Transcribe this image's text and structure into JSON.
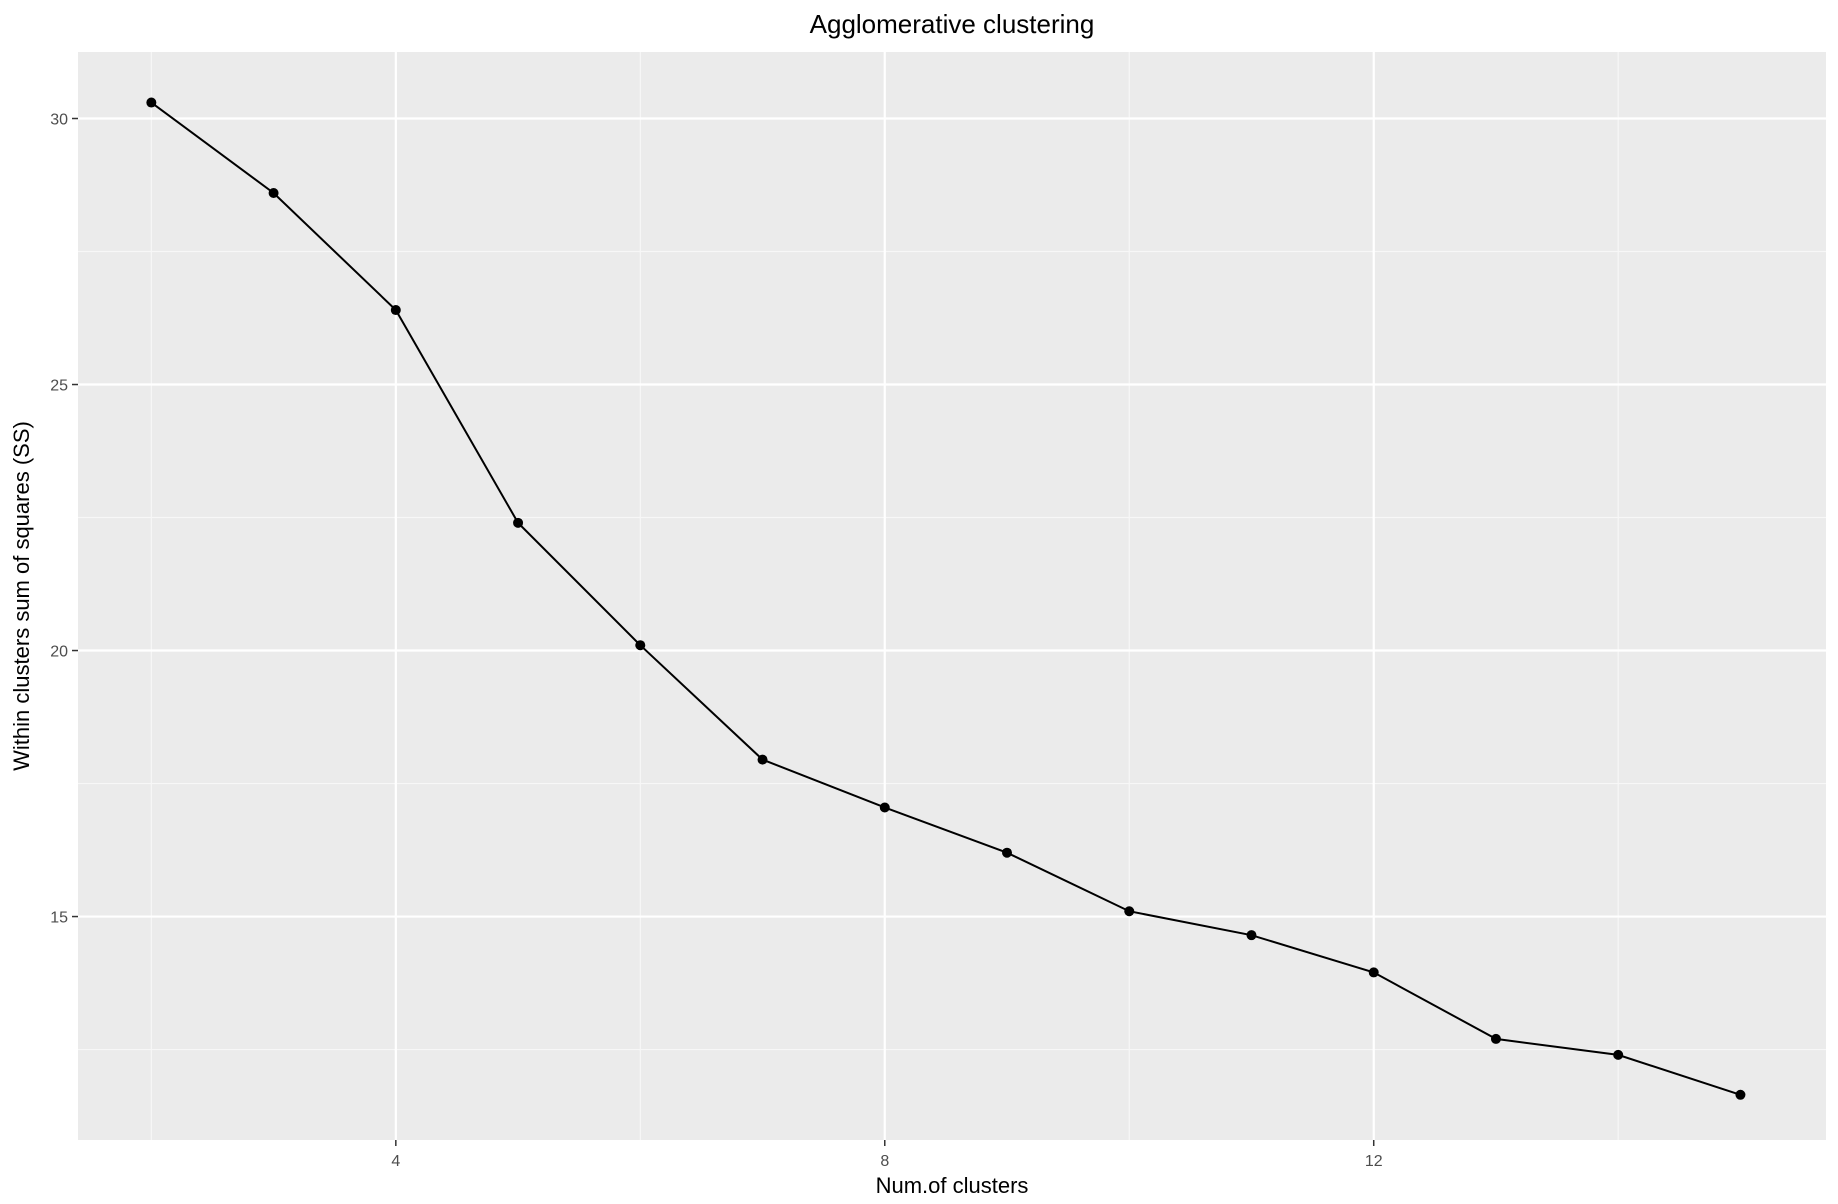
{
  "chart_data": {
    "type": "line",
    "title": "Agglomerative clustering",
    "xlabel": "Num.of clusters",
    "ylabel": "Within clusters sum of squares (SS)",
    "x": [
      2,
      3,
      4,
      5,
      6,
      7,
      8,
      9,
      10,
      11,
      12,
      13,
      14,
      15
    ],
    "series": [
      {
        "values": [
          30.3,
          28.6,
          26.4,
          22.4,
          20.1,
          17.95,
          17.05,
          16.2,
          15.1,
          14.65,
          13.95,
          12.7,
          12.4,
          11.65
        ]
      }
    ],
    "xlim": [
      1.4,
      15.7
    ],
    "ylim": [
      10.8,
      31.25
    ],
    "xticks": [
      4,
      8,
      12
    ],
    "xtick_labels": [
      "4",
      "8",
      "12"
    ],
    "yticks": [
      15,
      20,
      25,
      30
    ],
    "ytick_labels": [
      "15",
      "20",
      "25",
      "30"
    ],
    "grid": true,
    "legend": "none",
    "colors": {
      "panel_background": "#ebebeb",
      "grid_major": "#ffffff",
      "grid_minor": "#f7f7f7",
      "line": "#000000",
      "point": "#000000",
      "tick_label": "#4d4d4d"
    }
  }
}
